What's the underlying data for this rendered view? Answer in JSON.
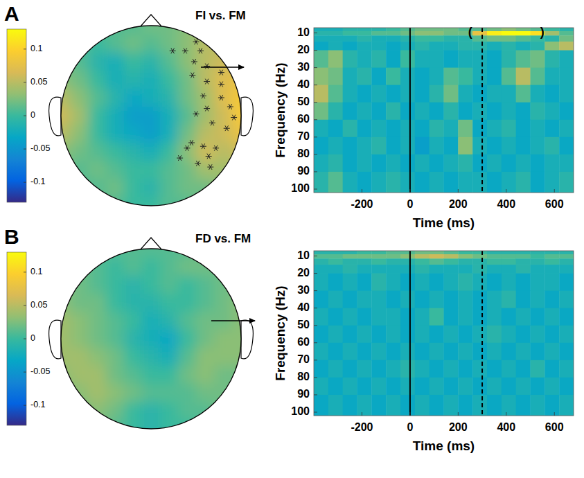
{
  "chart_data": [
    {
      "type": "topomap",
      "panel": "A",
      "title": "FI vs. FM",
      "x": [
        -1,
        -0.8,
        -0.6,
        -0.4,
        -0.2,
        0,
        0.2,
        0.4,
        0.6,
        0.8,
        1
      ],
      "y": [
        1,
        0.8,
        0.6,
        0.4,
        0.2,
        0,
        -0.2,
        -0.4,
        -0.6,
        -0.8,
        -1
      ],
      "cells": [
        [
          0.01,
          0.01,
          0.01,
          0.01,
          0.01,
          0.02,
          0.02,
          0.03,
          0.04,
          0.04,
          0.04
        ],
        [
          0.02,
          0.01,
          0.0,
          0.01,
          0.02,
          0.01,
          0.02,
          0.03,
          0.05,
          0.05,
          0.05
        ],
        [
          0.02,
          0.01,
          -0.01,
          -0.02,
          0.0,
          -0.01,
          0.01,
          0.03,
          0.05,
          0.06,
          0.06
        ],
        [
          0.03,
          0.02,
          0.0,
          -0.02,
          -0.01,
          -0.02,
          0.0,
          0.02,
          0.05,
          0.07,
          0.08
        ],
        [
          0.05,
          0.03,
          0.01,
          -0.01,
          -0.03,
          -0.02,
          -0.01,
          0.02,
          0.04,
          0.07,
          0.09
        ],
        [
          0.06,
          0.04,
          0.0,
          -0.02,
          -0.04,
          -0.04,
          -0.02,
          0.01,
          0.04,
          0.06,
          0.09
        ],
        [
          0.05,
          0.03,
          0.0,
          -0.02,
          -0.03,
          -0.04,
          -0.02,
          0.02,
          0.05,
          0.06,
          0.08
        ],
        [
          0.03,
          0.02,
          0.01,
          0.0,
          -0.01,
          -0.02,
          0.0,
          0.03,
          0.06,
          0.05,
          0.06
        ],
        [
          0.02,
          0.01,
          0.02,
          0.01,
          0.0,
          0.0,
          0.01,
          0.02,
          0.04,
          0.04,
          0.04
        ],
        [
          0.01,
          0.01,
          0.01,
          0.02,
          0.0,
          -0.01,
          0.01,
          0.02,
          0.02,
          0.03,
          0.03
        ],
        [
          0.01,
          0.01,
          0.01,
          0.01,
          0.0,
          0.0,
          0.01,
          0.01,
          0.02,
          0.02,
          0.02
        ]
      ],
      "color_range": [
        -0.13,
        0.13
      ],
      "color_ticks": [
        0.1,
        0.05,
        0,
        -0.05,
        -0.1
      ],
      "electrodes": {
        "x": [
          0.5,
          0.55,
          0.38,
          0.24,
          0.48,
          0.62,
          0.78,
          0.46,
          0.62,
          0.78,
          0.58,
          0.78,
          0.88,
          0.92,
          0.62,
          0.5,
          0.68,
          0.84,
          0.45,
          0.58,
          0.72,
          0.64,
          0.52,
          0.66,
          0.32,
          0.4
        ],
        "y": [
          0.82,
          0.72,
          0.72,
          0.72,
          0.6,
          0.55,
          0.48,
          0.45,
          0.38,
          0.35,
          0.22,
          0.2,
          0.1,
          -0.02,
          0.08,
          0.02,
          -0.08,
          -0.14,
          -0.3,
          -0.34,
          -0.36,
          -0.45,
          -0.53,
          -0.57,
          -0.47,
          -0.36
        ]
      },
      "marker": "asterisk"
    },
    {
      "type": "heatmap",
      "x_label": "Time (ms)",
      "y_label": "Frequency (Hz)",
      "xlim": [
        -400,
        680
      ],
      "ylim": [
        7,
        102
      ],
      "xticks": [
        -200,
        0,
        200,
        400,
        600
      ],
      "yticks": [
        10,
        20,
        30,
        40,
        50,
        60,
        70,
        80,
        90,
        100
      ],
      "x_edges": [
        -400,
        -340,
        -280,
        -220,
        -160,
        -100,
        -40,
        20,
        80,
        140,
        200,
        260,
        320,
        380,
        440,
        500,
        560,
        620,
        680
      ],
      "y_edges": [
        7,
        9,
        11.5,
        15,
        20,
        30,
        40,
        50,
        60,
        70,
        80,
        90,
        102
      ],
      "cells": [
        [
          -0.02,
          -0.02,
          -0.01,
          -0.01,
          -0.01,
          0.0,
          0.01,
          0.02,
          0.02,
          0.02,
          0.01,
          0.01,
          0.02,
          0.03,
          0.02,
          0.01,
          0.0,
          -0.01
        ],
        [
          -0.01,
          -0.01,
          0.0,
          0.0,
          0.01,
          0.01,
          0.02,
          0.03,
          0.03,
          0.02,
          0.02,
          0.08,
          0.12,
          0.13,
          0.13,
          0.11,
          0.04,
          0.01
        ],
        [
          -0.02,
          -0.02,
          -0.02,
          -0.01,
          -0.02,
          -0.02,
          -0.01,
          0.0,
          0.0,
          -0.01,
          -0.01,
          0.01,
          0.02,
          0.02,
          0.01,
          0.0,
          -0.01,
          0.02
        ],
        [
          -0.03,
          -0.02,
          -0.03,
          -0.02,
          -0.02,
          -0.03,
          -0.02,
          -0.01,
          -0.02,
          -0.02,
          -0.01,
          -0.01,
          -0.02,
          -0.01,
          -0.02,
          -0.01,
          0.03,
          0.05
        ],
        [
          0.01,
          0.03,
          -0.01,
          -0.02,
          -0.01,
          -0.03,
          0.0,
          -0.02,
          -0.02,
          -0.03,
          -0.02,
          -0.02,
          -0.03,
          -0.01,
          0.01,
          0.02,
          -0.01,
          -0.02
        ],
        [
          0.03,
          0.02,
          -0.02,
          -0.01,
          -0.03,
          0.0,
          -0.02,
          -0.03,
          -0.02,
          0.01,
          0.0,
          -0.02,
          -0.03,
          0.01,
          0.05,
          0.01,
          -0.02,
          -0.02
        ],
        [
          0.05,
          0.01,
          -0.02,
          -0.03,
          -0.02,
          -0.03,
          -0.02,
          -0.03,
          -0.01,
          0.02,
          -0.02,
          -0.03,
          -0.02,
          -0.02,
          0.01,
          -0.02,
          -0.03,
          -0.02
        ],
        [
          0.02,
          -0.01,
          -0.03,
          -0.02,
          -0.03,
          -0.01,
          -0.03,
          -0.02,
          -0.03,
          -0.01,
          -0.03,
          -0.02,
          -0.03,
          -0.02,
          -0.03,
          -0.01,
          -0.02,
          -0.03
        ],
        [
          -0.02,
          -0.03,
          -0.01,
          -0.03,
          -0.02,
          -0.03,
          -0.02,
          -0.03,
          -0.01,
          -0.02,
          0.02,
          -0.03,
          -0.02,
          -0.01,
          -0.03,
          -0.02,
          -0.03,
          -0.02
        ],
        [
          -0.03,
          -0.02,
          -0.03,
          -0.02,
          -0.01,
          -0.03,
          -0.02,
          -0.04,
          -0.02,
          -0.03,
          0.03,
          -0.02,
          -0.03,
          -0.02,
          -0.03,
          -0.02,
          -0.01,
          -0.03
        ],
        [
          -0.02,
          -0.01,
          -0.03,
          -0.02,
          -0.03,
          -0.02,
          -0.03,
          -0.02,
          -0.03,
          -0.02,
          -0.01,
          -0.03,
          -0.02,
          -0.03,
          -0.02,
          -0.03,
          -0.02,
          -0.02
        ],
        [
          -0.01,
          0.01,
          -0.02,
          -0.03,
          -0.02,
          -0.01,
          -0.02,
          -0.03,
          -0.02,
          -0.03,
          -0.02,
          -0.02,
          -0.03,
          -0.02,
          -0.01,
          -0.03,
          -0.02,
          -0.01
        ]
      ],
      "color_range": [
        -0.13,
        0.13
      ],
      "vlines": [
        {
          "x": 0,
          "line_style": "solid"
        },
        {
          "x": 300,
          "line_style": "dashed"
        }
      ],
      "annotations": [
        {
          "text": "(",
          "x": 250,
          "y": 10
        },
        {
          "text": ")",
          "x": 550,
          "y": 10
        }
      ]
    },
    {
      "type": "topomap",
      "panel": "B",
      "title": "FD vs. FM",
      "x": [
        -1,
        -0.8,
        -0.6,
        -0.4,
        -0.2,
        0,
        0.2,
        0.4,
        0.6,
        0.8,
        1
      ],
      "y": [
        1,
        0.8,
        0.6,
        0.4,
        0.2,
        0,
        -0.2,
        -0.4,
        -0.6,
        -0.8,
        -1
      ],
      "cells": [
        [
          0.02,
          0.02,
          0.01,
          0.01,
          0.01,
          0.01,
          0.01,
          0.01,
          0.02,
          0.02,
          0.02
        ],
        [
          0.02,
          0.02,
          0.01,
          0.0,
          0.01,
          0.0,
          0.01,
          0.02,
          0.02,
          0.02,
          0.02
        ],
        [
          0.03,
          0.02,
          0.01,
          0.0,
          -0.01,
          0.0,
          0.01,
          0.0,
          0.01,
          0.02,
          0.02
        ],
        [
          0.03,
          0.02,
          0.02,
          0.0,
          -0.01,
          -0.01,
          0.0,
          0.0,
          0.01,
          0.02,
          0.03
        ],
        [
          0.04,
          0.03,
          0.02,
          0.01,
          0.0,
          -0.02,
          -0.01,
          0.01,
          0.02,
          0.02,
          0.03
        ],
        [
          0.04,
          0.03,
          0.02,
          0.01,
          -0.01,
          -0.02,
          -0.03,
          0.0,
          0.02,
          0.03,
          0.03
        ],
        [
          0.04,
          0.04,
          0.03,
          0.02,
          0.0,
          -0.01,
          -0.02,
          0.01,
          0.03,
          0.03,
          0.03
        ],
        [
          0.03,
          0.04,
          0.04,
          0.02,
          0.01,
          0.0,
          0.0,
          0.02,
          0.03,
          0.02,
          0.02
        ],
        [
          0.02,
          0.03,
          0.04,
          0.03,
          0.02,
          0.01,
          0.01,
          0.01,
          0.02,
          0.02,
          0.02
        ],
        [
          0.02,
          0.02,
          0.03,
          0.02,
          0.0,
          -0.01,
          0.0,
          0.01,
          0.01,
          0.02,
          0.02
        ],
        [
          0.01,
          0.01,
          0.02,
          0.01,
          0.0,
          -0.01,
          0.0,
          0.0,
          0.01,
          0.01,
          0.01
        ]
      ],
      "color_range": [
        -0.13,
        0.13
      ],
      "color_ticks": [
        0.1,
        0.05,
        0,
        -0.05,
        -0.1
      ]
    },
    {
      "type": "heatmap",
      "x_label": "Time (ms)",
      "y_label": "Frequency (Hz)",
      "xlim": [
        -400,
        680
      ],
      "ylim": [
        7,
        102
      ],
      "xticks": [
        -200,
        0,
        200,
        400,
        600
      ],
      "yticks": [
        10,
        20,
        30,
        40,
        50,
        60,
        70,
        80,
        90,
        100
      ],
      "x_edges": [
        -400,
        -340,
        -280,
        -220,
        -160,
        -100,
        -40,
        20,
        80,
        140,
        200,
        260,
        320,
        380,
        440,
        500,
        560,
        620,
        680
      ],
      "y_edges": [
        7,
        9,
        11.5,
        15,
        20,
        30,
        40,
        50,
        60,
        70,
        80,
        90,
        102
      ],
      "cells": [
        [
          -0.01,
          -0.01,
          -0.01,
          0.0,
          0.0,
          0.01,
          0.01,
          0.02,
          0.02,
          0.01,
          0.0,
          0.0,
          -0.01,
          -0.01,
          -0.01,
          -0.01,
          -0.01,
          -0.01
        ],
        [
          0.01,
          0.01,
          0.02,
          0.02,
          0.02,
          0.02,
          0.03,
          0.05,
          0.06,
          0.05,
          0.03,
          0.02,
          0.01,
          0.01,
          0.01,
          0.0,
          0.01,
          0.01
        ],
        [
          -0.01,
          0.0,
          -0.01,
          -0.01,
          0.0,
          -0.01,
          -0.01,
          0.0,
          0.01,
          0.0,
          -0.01,
          -0.01,
          0.0,
          0.0,
          -0.01,
          -0.01,
          0.0,
          -0.01
        ],
        [
          -0.02,
          -0.02,
          -0.01,
          -0.02,
          -0.02,
          -0.02,
          -0.02,
          -0.01,
          -0.02,
          -0.02,
          -0.02,
          -0.01,
          -0.02,
          -0.02,
          -0.01,
          -0.02,
          -0.02,
          -0.02
        ],
        [
          -0.02,
          -0.03,
          -0.02,
          -0.03,
          -0.01,
          -0.02,
          -0.03,
          -0.02,
          -0.03,
          -0.02,
          -0.01,
          -0.02,
          -0.03,
          -0.02,
          -0.03,
          -0.02,
          -0.02,
          -0.03
        ],
        [
          -0.03,
          -0.02,
          -0.03,
          -0.02,
          -0.02,
          -0.03,
          -0.02,
          -0.03,
          -0.02,
          -0.03,
          -0.02,
          -0.03,
          -0.02,
          -0.01,
          -0.03,
          -0.02,
          -0.03,
          -0.02
        ],
        [
          -0.02,
          -0.03,
          -0.02,
          -0.03,
          -0.02,
          -0.02,
          -0.03,
          -0.02,
          0.0,
          -0.03,
          -0.02,
          -0.03,
          -0.02,
          -0.03,
          -0.02,
          -0.03,
          -0.02,
          -0.03
        ],
        [
          -0.03,
          -0.02,
          -0.03,
          -0.02,
          -0.03,
          -0.02,
          -0.03,
          -0.02,
          -0.03,
          -0.02,
          -0.03,
          -0.02,
          -0.01,
          -0.02,
          -0.03,
          -0.02,
          -0.03,
          -0.02
        ],
        [
          -0.02,
          -0.03,
          -0.02,
          -0.03,
          -0.02,
          -0.03,
          -0.02,
          -0.03,
          -0.02,
          -0.03,
          -0.02,
          -0.03,
          -0.02,
          -0.03,
          -0.02,
          -0.03,
          -0.02,
          -0.03
        ],
        [
          -0.03,
          -0.02,
          -0.03,
          -0.02,
          -0.03,
          -0.02,
          -0.01,
          -0.02,
          -0.03,
          -0.02,
          -0.03,
          -0.02,
          -0.03,
          -0.02,
          -0.03,
          -0.01,
          -0.03,
          -0.02
        ],
        [
          -0.02,
          -0.03,
          -0.02,
          -0.03,
          -0.02,
          -0.03,
          -0.02,
          -0.03,
          -0.02,
          -0.03,
          -0.02,
          -0.03,
          -0.02,
          -0.03,
          -0.02,
          -0.03,
          -0.02,
          -0.03
        ],
        [
          -0.03,
          -0.02,
          -0.03,
          -0.02,
          -0.03,
          -0.02,
          -0.03,
          -0.02,
          -0.03,
          -0.02,
          -0.03,
          -0.02,
          -0.03,
          -0.02,
          -0.03,
          -0.02,
          -0.03,
          -0.02
        ]
      ],
      "color_range": [
        -0.13,
        0.13
      ],
      "vlines": [
        {
          "x": 0,
          "line_style": "solid"
        },
        {
          "x": 300,
          "line_style": "dashed"
        }
      ]
    }
  ]
}
